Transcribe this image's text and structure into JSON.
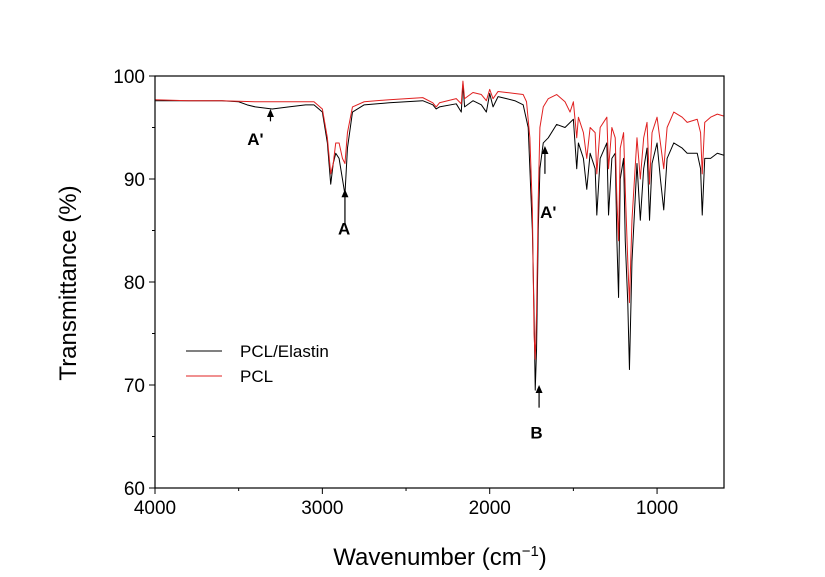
{
  "chart_data": {
    "type": "line",
    "xlabel": "Wavenumber (cm",
    "xlabel_sup": "−1",
    "xlabel_tail": ")",
    "ylabel": "Transmittance (%)",
    "xlim": [
      4000,
      600
    ],
    "ylim": [
      60,
      100
    ],
    "x_ticks": [
      4000,
      3000,
      2000,
      1000
    ],
    "y_ticks": [
      60,
      70,
      80,
      90,
      100
    ],
    "grid": false,
    "legend_position": "middle-left",
    "series": [
      {
        "name": "PCL/Elastin",
        "color": "#000000",
        "points": [
          [
            4000,
            97.6
          ],
          [
            3800,
            97.6
          ],
          [
            3600,
            97.6
          ],
          [
            3500,
            97.5
          ],
          [
            3450,
            97.2
          ],
          [
            3400,
            97.0
          ],
          [
            3300,
            96.8
          ],
          [
            3200,
            97.0
          ],
          [
            3100,
            97.2
          ],
          [
            3050,
            97.2
          ],
          [
            3000,
            96.5
          ],
          [
            2970,
            93.5
          ],
          [
            2950,
            89.5
          ],
          [
            2935,
            91.5
          ],
          [
            2920,
            92.5
          ],
          [
            2900,
            92.0
          ],
          [
            2880,
            90.0
          ],
          [
            2865,
            88.5
          ],
          [
            2850,
            93.0
          ],
          [
            2820,
            96.5
          ],
          [
            2750,
            97.2
          ],
          [
            2600,
            97.4
          ],
          [
            2400,
            97.6
          ],
          [
            2340,
            97.2
          ],
          [
            2320,
            96.8
          ],
          [
            2300,
            97.0
          ],
          [
            2200,
            97.3
          ],
          [
            2170,
            96.5
          ],
          [
            2160,
            99.2
          ],
          [
            2150,
            97.0
          ],
          [
            2100,
            97.6
          ],
          [
            2050,
            97.2
          ],
          [
            2020,
            96.5
          ],
          [
            2000,
            98.3
          ],
          [
            1980,
            97.0
          ],
          [
            1950,
            98.0
          ],
          [
            1900,
            97.8
          ],
          [
            1850,
            97.6
          ],
          [
            1800,
            97.2
          ],
          [
            1770,
            95.0
          ],
          [
            1745,
            85.0
          ],
          [
            1735,
            77.0
          ],
          [
            1728,
            69.5
          ],
          [
            1720,
            73.5
          ],
          [
            1710,
            85.0
          ],
          [
            1700,
            91.0
          ],
          [
            1680,
            93.5
          ],
          [
            1650,
            94.0
          ],
          [
            1600,
            95.3
          ],
          [
            1550,
            95.0
          ],
          [
            1500,
            95.8
          ],
          [
            1480,
            91.0
          ],
          [
            1470,
            93.5
          ],
          [
            1440,
            92.0
          ],
          [
            1420,
            89.0
          ],
          [
            1400,
            92.5
          ],
          [
            1370,
            91.0
          ],
          [
            1360,
            86.5
          ],
          [
            1340,
            92.0
          ],
          [
            1300,
            93.5
          ],
          [
            1290,
            86.5
          ],
          [
            1270,
            92.0
          ],
          [
            1250,
            92.5
          ],
          [
            1240,
            84.0
          ],
          [
            1230,
            78.5
          ],
          [
            1220,
            90.0
          ],
          [
            1200,
            92.0
          ],
          [
            1190,
            84.0
          ],
          [
            1175,
            78.0
          ],
          [
            1165,
            71.5
          ],
          [
            1150,
            82.0
          ],
          [
            1120,
            91.5
          ],
          [
            1100,
            86.0
          ],
          [
            1080,
            91.0
          ],
          [
            1060,
            93.0
          ],
          [
            1045,
            86.0
          ],
          [
            1030,
            91.5
          ],
          [
            1000,
            93.5
          ],
          [
            980,
            90.0
          ],
          [
            960,
            87.0
          ],
          [
            940,
            92.0
          ],
          [
            900,
            93.5
          ],
          [
            850,
            93.0
          ],
          [
            820,
            92.5
          ],
          [
            760,
            92.5
          ],
          [
            740,
            91.0
          ],
          [
            730,
            86.5
          ],
          [
            715,
            92.0
          ],
          [
            680,
            92.0
          ],
          [
            640,
            92.5
          ],
          [
            600,
            92.3
          ]
        ]
      },
      {
        "name": "PCL",
        "color": "#e02020",
        "points": [
          [
            4000,
            97.7
          ],
          [
            3800,
            97.6
          ],
          [
            3600,
            97.6
          ],
          [
            3400,
            97.5
          ],
          [
            3200,
            97.5
          ],
          [
            3050,
            97.5
          ],
          [
            3000,
            96.8
          ],
          [
            2970,
            94.0
          ],
          [
            2950,
            90.5
          ],
          [
            2935,
            91.5
          ],
          [
            2920,
            93.5
          ],
          [
            2900,
            93.5
          ],
          [
            2880,
            92.0
          ],
          [
            2865,
            91.5
          ],
          [
            2850,
            94.5
          ],
          [
            2820,
            97.0
          ],
          [
            2750,
            97.5
          ],
          [
            2600,
            97.7
          ],
          [
            2400,
            97.9
          ],
          [
            2340,
            97.4
          ],
          [
            2320,
            97.0
          ],
          [
            2300,
            97.4
          ],
          [
            2200,
            97.8
          ],
          [
            2170,
            97.3
          ],
          [
            2160,
            99.5
          ],
          [
            2150,
            97.8
          ],
          [
            2100,
            98.4
          ],
          [
            2050,
            98.2
          ],
          [
            2020,
            97.6
          ],
          [
            2000,
            98.7
          ],
          [
            1980,
            97.8
          ],
          [
            1950,
            98.5
          ],
          [
            1900,
            98.4
          ],
          [
            1850,
            98.3
          ],
          [
            1800,
            98.2
          ],
          [
            1780,
            97.5
          ],
          [
            1760,
            94.0
          ],
          [
            1745,
            87.0
          ],
          [
            1735,
            75.0
          ],
          [
            1728,
            72.5
          ],
          [
            1720,
            77.0
          ],
          [
            1710,
            88.0
          ],
          [
            1700,
            95.0
          ],
          [
            1680,
            97.0
          ],
          [
            1650,
            97.8
          ],
          [
            1600,
            98.2
          ],
          [
            1550,
            97.5
          ],
          [
            1520,
            96.5
          ],
          [
            1500,
            97.5
          ],
          [
            1480,
            94.0
          ],
          [
            1470,
            96.0
          ],
          [
            1440,
            94.5
          ],
          [
            1420,
            92.0
          ],
          [
            1400,
            95.0
          ],
          [
            1370,
            94.5
          ],
          [
            1360,
            90.5
          ],
          [
            1340,
            95.0
          ],
          [
            1300,
            96.0
          ],
          [
            1290,
            91.0
          ],
          [
            1270,
            95.0
          ],
          [
            1250,
            94.0
          ],
          [
            1240,
            88.0
          ],
          [
            1230,
            84.0
          ],
          [
            1220,
            93.0
          ],
          [
            1200,
            94.5
          ],
          [
            1190,
            89.0
          ],
          [
            1175,
            82.0
          ],
          [
            1165,
            78.0
          ],
          [
            1150,
            86.0
          ],
          [
            1120,
            94.0
          ],
          [
            1100,
            90.0
          ],
          [
            1080,
            94.0
          ],
          [
            1060,
            95.5
          ],
          [
            1045,
            89.5
          ],
          [
            1030,
            94.5
          ],
          [
            1000,
            96.0
          ],
          [
            980,
            93.5
          ],
          [
            960,
            91.0
          ],
          [
            940,
            95.0
          ],
          [
            900,
            96.5
          ],
          [
            850,
            96.0
          ],
          [
            820,
            95.5
          ],
          [
            760,
            95.8
          ],
          [
            740,
            94.5
          ],
          [
            730,
            90.5
          ],
          [
            715,
            95.5
          ],
          [
            680,
            96.0
          ],
          [
            640,
            96.3
          ],
          [
            600,
            96.1
          ]
        ]
      }
    ],
    "annotations": [
      {
        "label": "A'",
        "x": 3310,
        "tip_y": 96.8,
        "tail_y": 95.6,
        "text_y": 93.3,
        "text_x": 3400
      },
      {
        "label": "A",
        "x": 2865,
        "tip_y": 89.0,
        "tail_y": 85.5,
        "text_y": 84.6,
        "text_x": 2870
      },
      {
        "label": "B",
        "x": 1705,
        "tip_y": 70.0,
        "tail_y": 67.8,
        "text_y": 64.8,
        "text_x": 1720
      },
      {
        "label": "A'",
        "x": 1670,
        "tip_y": 93.2,
        "tail_y": 90.5,
        "text_y": 86.2,
        "text_x": 1650
      }
    ]
  }
}
